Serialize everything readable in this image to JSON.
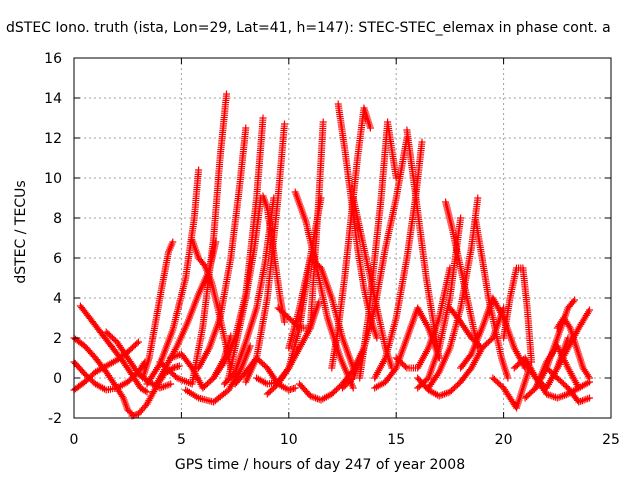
{
  "chart_data": {
    "type": "scatter",
    "title": "dSTEC Iono. truth (ista, Lon=29, Lat=41, h=147): STEC-STEC_elemax in phase cont. a",
    "xlabel": "GPS time / hours of day 247 of year 2008",
    "ylabel": "dSTEC  / TECUs",
    "xlim": [
      0,
      25
    ],
    "ylim": [
      -2,
      16
    ],
    "x_ticks": [
      "0",
      "5",
      "10",
      "15",
      "20",
      "25"
    ],
    "y_ticks": [
      "-2",
      "0",
      "2",
      "4",
      "6",
      "8",
      "10",
      "12",
      "14",
      "16"
    ],
    "grid": true,
    "marker": "+",
    "color": "#ff0000",
    "series": [
      {
        "x": [
          0.0,
          0.5,
          1.0,
          1.5,
          2.0,
          2.5,
          3.0,
          3.3
        ],
        "y": [
          0.8,
          0.2,
          -0.3,
          -0.6,
          -0.5,
          -0.2,
          0.3,
          0.8
        ]
      },
      {
        "x": [
          0.0,
          0.5,
          1.0,
          1.5,
          2.0,
          2.3,
          2.5,
          2.7
        ],
        "y": [
          2.0,
          1.6,
          1.0,
          0.3,
          -0.5,
          -1.0,
          -1.6,
          -1.8
        ]
      },
      {
        "x": [
          0.0,
          0.5,
          1.0,
          1.5,
          2.0,
          2.5,
          3.0
        ],
        "y": [
          -0.6,
          -0.2,
          0.3,
          0.6,
          0.9,
          1.3,
          1.8
        ]
      },
      {
        "x": [
          0.3,
          0.8,
          1.3,
          1.8,
          2.3,
          2.8,
          3.1,
          3.4
        ],
        "y": [
          3.6,
          2.9,
          2.2,
          1.5,
          0.8,
          0.0,
          -0.5,
          -0.7
        ]
      },
      {
        "x": [
          1.5,
          2.0,
          2.5,
          3.0,
          3.5,
          4.0,
          4.5
        ],
        "y": [
          2.3,
          1.8,
          1.0,
          0.2,
          -0.2,
          -0.5,
          -0.3
        ]
      },
      {
        "x": [
          2.7,
          3.0,
          3.4,
          3.8,
          4.2,
          4.6,
          4.9
        ],
        "y": [
          -1.9,
          -1.8,
          -1.3,
          -0.5,
          0.2,
          0.5,
          0.6
        ]
      },
      {
        "x": [
          3.2,
          3.5,
          3.8,
          4.1,
          4.4,
          4.6
        ],
        "y": [
          0.0,
          1.0,
          2.8,
          4.6,
          6.3,
          6.8
        ]
      },
      {
        "x": [
          3.4,
          4.0,
          4.6,
          5.2,
          5.6,
          5.8
        ],
        "y": [
          -0.3,
          0.7,
          2.4,
          5.0,
          8.0,
          10.4
        ]
      },
      {
        "x": [
          3.8,
          4.3,
          4.8,
          5.3,
          5.8,
          6.3,
          6.6
        ],
        "y": [
          -0.4,
          0.6,
          1.6,
          2.8,
          4.2,
          5.4,
          6.8
        ]
      },
      {
        "x": [
          4.0,
          4.8,
          5.5,
          6.0,
          6.5,
          6.8,
          7.1
        ],
        "y": [
          0.8,
          0.0,
          -0.3,
          2.6,
          7.0,
          11.0,
          14.2
        ]
      },
      {
        "x": [
          4.5,
          5.0,
          5.5,
          6.0,
          6.5,
          7.0,
          7.3
        ],
        "y": [
          1.0,
          1.2,
          0.5,
          -0.5,
          0.0,
          1.0,
          2.1
        ]
      },
      {
        "x": [
          5.2,
          5.8,
          6.5,
          7.2,
          7.8,
          8.2
        ],
        "y": [
          -0.6,
          -1.0,
          -1.2,
          -0.6,
          0.5,
          1.6
        ]
      },
      {
        "x": [
          5.5,
          5.8,
          6.1,
          6.4,
          6.7,
          7.0,
          7.3
        ],
        "y": [
          6.9,
          6.0,
          5.6,
          4.8,
          3.5,
          2.0,
          0.5
        ]
      },
      {
        "x": [
          5.8,
          6.3,
          6.8,
          7.3,
          7.7,
          8.0
        ],
        "y": [
          0.5,
          1.5,
          3.0,
          6.0,
          9.5,
          12.5
        ]
      },
      {
        "x": [
          6.5,
          7.0,
          7.5,
          8.0,
          8.5,
          8.8
        ],
        "y": [
          0.0,
          0.8,
          2.0,
          4.2,
          9.0,
          13.0
        ]
      },
      {
        "x": [
          7.0,
          7.5,
          8.0,
          8.5,
          8.9,
          9.3
        ],
        "y": [
          -0.3,
          0.3,
          1.8,
          3.5,
          5.8,
          9.0
        ]
      },
      {
        "x": [
          7.2,
          7.6,
          8.0,
          8.4,
          8.7
        ],
        "y": [
          0.0,
          2.0,
          4.0,
          6.5,
          9.0
        ]
      },
      {
        "x": [
          8.0,
          8.5,
          9.0,
          9.5,
          9.8
        ],
        "y": [
          -0.2,
          1.0,
          4.0,
          9.0,
          12.7
        ]
      },
      {
        "x": [
          8.8,
          9.0,
          9.2,
          9.4,
          9.6,
          9.8
        ],
        "y": [
          9.1,
          8.5,
          7.0,
          5.5,
          4.0,
          2.8
        ]
      },
      {
        "x": [
          7.5,
          8.0,
          8.5,
          9.0,
          9.5,
          10.0,
          10.3
        ],
        "y": [
          -0.3,
          0.3,
          1.0,
          0.5,
          -0.3,
          -0.6,
          -0.5
        ]
      },
      {
        "x": [
          8.5,
          9.0,
          9.5,
          10.0,
          10.5,
          11.0,
          11.4
        ],
        "y": [
          0.0,
          -0.3,
          -0.2,
          0.5,
          1.5,
          2.5,
          3.8
        ]
      },
      {
        "x": [
          9.0,
          9.5,
          10.0,
          10.5,
          11.0,
          11.5
        ],
        "y": [
          -0.8,
          -0.3,
          0.5,
          2.5,
          6.0,
          9.0
        ]
      },
      {
        "x": [
          9.5,
          10.0,
          10.5,
          11.0,
          11.4,
          11.6
        ],
        "y": [
          3.5,
          3.0,
          2.5,
          2.5,
          9.0,
          12.8
        ]
      },
      {
        "x": [
          10.0,
          10.5,
          11.0,
          11.5,
          12.0,
          12.5,
          13.0
        ],
        "y": [
          1.5,
          3.5,
          6.0,
          5.5,
          4.0,
          2.0,
          0.5
        ]
      },
      {
        "x": [
          10.3,
          10.8,
          11.3,
          11.8,
          12.4,
          13.0
        ],
        "y": [
          9.3,
          7.8,
          5.5,
          3.0,
          1.0,
          -0.5
        ]
      },
      {
        "x": [
          10.5,
          11.0,
          11.5,
          12.0,
          12.5,
          13.0,
          13.5
        ],
        "y": [
          -0.3,
          -0.9,
          -1.1,
          -0.8,
          -0.3,
          0.4,
          1.5
        ]
      },
      {
        "x": [
          12.0,
          12.3,
          12.6,
          12.9,
          13.2,
          13.5,
          13.8
        ],
        "y": [
          0.5,
          2.5,
          5.0,
          8.0,
          11.0,
          13.5,
          12.5
        ]
      },
      {
        "x": [
          12.3,
          12.6,
          12.9,
          13.2,
          13.5,
          13.8,
          14.1
        ],
        "y": [
          13.7,
          11.5,
          9.0,
          6.5,
          4.5,
          3.0,
          2.0
        ]
      },
      {
        "x": [
          13.0,
          13.4,
          13.8,
          14.2,
          14.5,
          14.8
        ],
        "y": [
          9.0,
          7.0,
          5.0,
          3.0,
          1.5,
          0.5
        ]
      },
      {
        "x": [
          13.3,
          13.7,
          14.0,
          14.3,
          14.6,
          15.0
        ],
        "y": [
          0.0,
          3.0,
          6.0,
          9.0,
          12.8,
          10.0
        ]
      },
      {
        "x": [
          12.5,
          13.0,
          13.5,
          14.0,
          14.5,
          15.0,
          15.5
        ],
        "y": [
          -0.5,
          0.0,
          1.5,
          3.5,
          6.5,
          9.0,
          12.0
        ]
      },
      {
        "x": [
          14.0,
          14.5,
          15.0,
          15.5,
          15.9,
          16.2
        ],
        "y": [
          0.0,
          1.0,
          3.0,
          6.0,
          9.0,
          11.8
        ]
      },
      {
        "x": [
          15.5,
          15.8,
          16.1,
          16.4,
          16.7,
          17.0
        ],
        "y": [
          12.4,
          10.0,
          7.5,
          5.0,
          3.0,
          1.0
        ]
      },
      {
        "x": [
          14.0,
          14.5,
          15.0,
          15.5,
          16.0,
          16.5,
          17.0
        ],
        "y": [
          -0.5,
          -0.2,
          0.5,
          2.0,
          3.5,
          2.5,
          1.0
        ]
      },
      {
        "x": [
          15.0,
          15.5,
          16.0,
          16.5,
          17.0,
          17.5
        ],
        "y": [
          1.0,
          0.5,
          0.5,
          1.5,
          3.0,
          5.5
        ]
      },
      {
        "x": [
          16.0,
          16.5,
          17.0,
          17.5,
          18.0
        ],
        "y": [
          -0.5,
          0.0,
          1.5,
          4.0,
          8.0
        ]
      },
      {
        "x": [
          17.3,
          17.6,
          17.9,
          18.2,
          18.5,
          18.8
        ],
        "y": [
          8.8,
          7.5,
          6.0,
          4.5,
          3.0,
          1.5
        ]
      },
      {
        "x": [
          16.5,
          17.0,
          17.5,
          18.0,
          18.5,
          18.8
        ],
        "y": [
          -0.5,
          0.3,
          1.5,
          3.5,
          6.5,
          9.0
        ]
      },
      {
        "x": [
          18.7,
          19.0,
          19.3,
          19.6,
          19.9,
          20.2
        ],
        "y": [
          7.9,
          6.0,
          4.0,
          2.5,
          1.0,
          0.0
        ]
      },
      {
        "x": [
          16.0,
          16.5,
          17.0,
          17.5,
          18.0,
          18.5,
          19.0
        ],
        "y": [
          0.0,
          -0.6,
          -0.9,
          -0.7,
          -0.2,
          0.5,
          1.5
        ]
      },
      {
        "x": [
          17.5,
          18.0,
          18.5,
          19.0,
          19.5,
          20.0
        ],
        "y": [
          3.5,
          2.8,
          2.0,
          1.5,
          2.0,
          3.5
        ]
      },
      {
        "x": [
          18.0,
          18.5,
          19.0,
          19.5,
          20.0,
          20.5,
          21.0
        ],
        "y": [
          0.5,
          1.2,
          2.5,
          4.0,
          3.0,
          1.5,
          0.5
        ]
      },
      {
        "x": [
          19.5,
          20.0,
          20.3,
          20.6,
          20.9,
          21.2
        ],
        "y": [
          0.0,
          -0.5,
          -1.0,
          -1.5,
          -0.5,
          0.5
        ]
      },
      {
        "x": [
          20.0,
          20.3,
          20.6,
          20.9,
          21.1,
          21.3
        ],
        "y": [
          2.0,
          4.0,
          5.5,
          5.5,
          3.5,
          0.8
        ]
      },
      {
        "x": [
          20.5,
          21.0,
          21.5,
          22.0,
          22.5,
          23.0
        ],
        "y": [
          0.5,
          1.0,
          0.0,
          -0.5,
          0.5,
          2.0
        ]
      },
      {
        "x": [
          21.0,
          21.5,
          22.0,
          22.5,
          23.0,
          23.3
        ],
        "y": [
          -1.0,
          -0.5,
          0.5,
          2.0,
          3.5,
          3.9
        ]
      },
      {
        "x": [
          21.5,
          22.0,
          22.5,
          23.0,
          23.5,
          24.0
        ],
        "y": [
          -0.5,
          0.8,
          1.6,
          0.5,
          -0.5,
          -0.2
        ]
      },
      {
        "x": [
          22.5,
          22.8,
          23.1,
          23.4,
          23.7,
          24.0
        ],
        "y": [
          2.5,
          3.0,
          2.5,
          1.5,
          0.5,
          0.0
        ]
      },
      {
        "x": [
          22.0,
          22.5,
          23.0,
          23.5,
          24.0
        ],
        "y": [
          0.5,
          0.0,
          -0.5,
          -1.2,
          -1.0
        ]
      },
      {
        "x": [
          22.5,
          23.0,
          23.5,
          24.0
        ],
        "y": [
          0.5,
          1.5,
          2.5,
          3.4
        ]
      },
      {
        "x": [
          21.0,
          21.5,
          22.0,
          22.5,
          23.0,
          23.5
        ],
        "y": [
          0.8,
          0.0,
          -0.8,
          -1.0,
          -0.8,
          -0.5
        ]
      }
    ]
  }
}
